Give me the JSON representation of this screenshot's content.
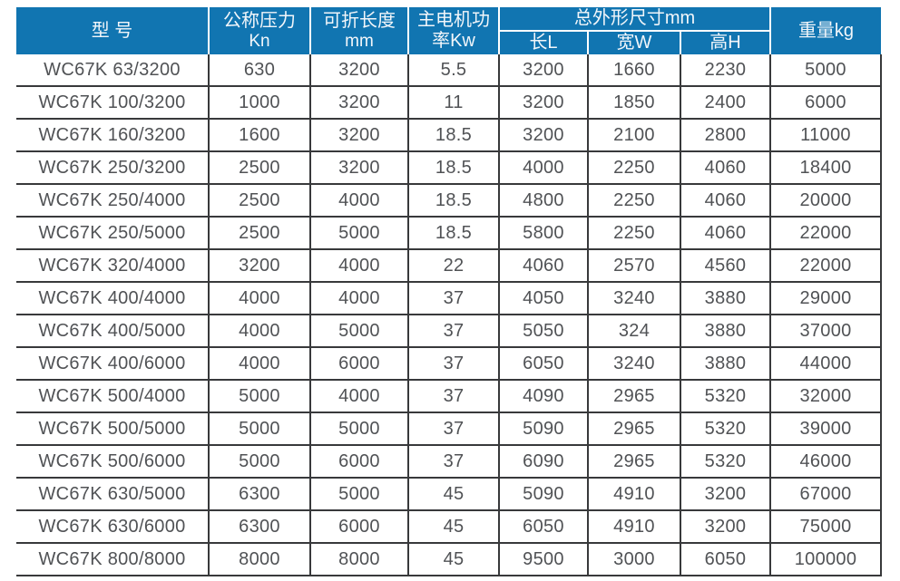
{
  "table": {
    "title_hint": "WC67K press brake specification table",
    "header": {
      "model": "型 号",
      "pressure_line1": "公称压力",
      "pressure_line2": "Kn",
      "length_line1": "可折长度",
      "length_line2": "mm",
      "power_line1": "主电机功",
      "power_line2": "率Kw",
      "dims_group": "总外形尺寸mm",
      "dim_l": "长L",
      "dim_w": "宽W",
      "dim_h": "高H",
      "weight": "重量kg"
    },
    "column_keys": [
      "model",
      "pressure",
      "length",
      "power",
      "dim_l",
      "dim_w",
      "dim_h",
      "weight"
    ],
    "rows": [
      [
        "WC67K 63/3200",
        "630",
        "3200",
        "5.5",
        "3200",
        "1660",
        "2230",
        "5000"
      ],
      [
        "WC67K 100/3200",
        "1000",
        "3200",
        "11",
        "3200",
        "1850",
        "2400",
        "6000"
      ],
      [
        "WC67K 160/3200",
        "1600",
        "3200",
        "18.5",
        "3200",
        "2100",
        "2800",
        "11000"
      ],
      [
        "WC67K 250/3200",
        "2500",
        "3200",
        "18.5",
        "4000",
        "2250",
        "4060",
        "18400"
      ],
      [
        "WC67K 250/4000",
        "2500",
        "4000",
        "18.5",
        "4800",
        "2250",
        "4060",
        "20000"
      ],
      [
        "WC67K 250/5000",
        "2500",
        "5000",
        "18.5",
        "5800",
        "2250",
        "4060",
        "22000"
      ],
      [
        "WC67K 320/4000",
        "3200",
        "4000",
        "22",
        "4060",
        "2570",
        "4560",
        "22000"
      ],
      [
        "WC67K 400/4000",
        "4000",
        "4000",
        "37",
        "4050",
        "3240",
        "3880",
        "29000"
      ],
      [
        "WC67K 400/5000",
        "4000",
        "5000",
        "37",
        "5050",
        "324",
        "3880",
        "37000"
      ],
      [
        "WC67K 400/6000",
        "4000",
        "6000",
        "37",
        "6050",
        "3240",
        "3880",
        "44000"
      ],
      [
        "WC67K 500/4000",
        "5000",
        "4000",
        "37",
        "4090",
        "2965",
        "5320",
        "32000"
      ],
      [
        "WC67K 500/5000",
        "5000",
        "5000",
        "37",
        "5090",
        "2965",
        "5320",
        "39000"
      ],
      [
        "WC67K 500/6000",
        "5000",
        "6000",
        "37",
        "6090",
        "2965",
        "5320",
        "46000"
      ],
      [
        "WC67K 630/5000",
        "6300",
        "5000",
        "45",
        "5090",
        "4910",
        "3200",
        "67000"
      ],
      [
        "WC67K 630/6000",
        "6300",
        "6000",
        "45",
        "6050",
        "4910",
        "3200",
        "75000"
      ],
      [
        "WC67K 800/8000",
        "8000",
        "8000",
        "45",
        "9500",
        "3000",
        "6050",
        "100000"
      ]
    ],
    "colors": {
      "header_bg": "#1175b1",
      "header_text": "#f2f6fa",
      "grid_line": "#38393b",
      "body_text": "#505255"
    }
  }
}
